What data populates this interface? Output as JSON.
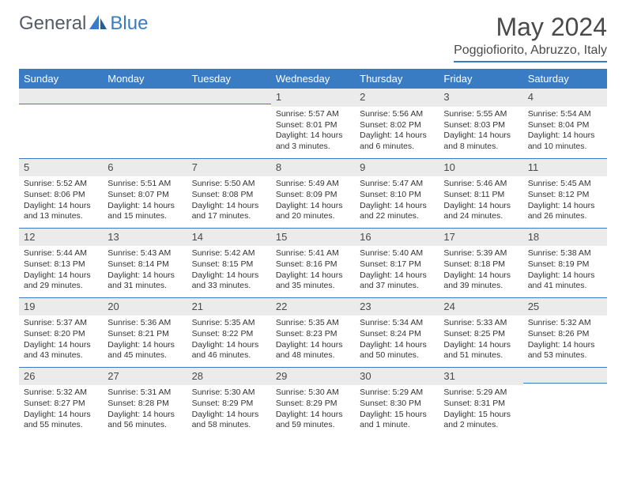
{
  "brand": {
    "name1": "General",
    "name2": "Blue"
  },
  "colors": {
    "accent": "#3a7cc4",
    "header_row_bg": "#3a7cc4",
    "header_row_fg": "#ffffff",
    "daynum_bg": "#ebebeb",
    "text": "#333333",
    "title": "#4a4a4a"
  },
  "typography": {
    "base_font": "Arial",
    "title_size_pt": 24,
    "body_size_pt": 8
  },
  "title": "May 2024",
  "location": "Poggiofiorito, Abruzzo, Italy",
  "weekdays": [
    "Sunday",
    "Monday",
    "Tuesday",
    "Wednesday",
    "Thursday",
    "Friday",
    "Saturday"
  ],
  "layout": {
    "first_day_column": 3,
    "columns": 7,
    "rows": 5
  },
  "days": [
    {
      "n": "1",
      "sr": "Sunrise: 5:57 AM",
      "ss": "Sunset: 8:01 PM",
      "d1": "Daylight: 14 hours",
      "d2": "and 3 minutes."
    },
    {
      "n": "2",
      "sr": "Sunrise: 5:56 AM",
      "ss": "Sunset: 8:02 PM",
      "d1": "Daylight: 14 hours",
      "d2": "and 6 minutes."
    },
    {
      "n": "3",
      "sr": "Sunrise: 5:55 AM",
      "ss": "Sunset: 8:03 PM",
      "d1": "Daylight: 14 hours",
      "d2": "and 8 minutes."
    },
    {
      "n": "4",
      "sr": "Sunrise: 5:54 AM",
      "ss": "Sunset: 8:04 PM",
      "d1": "Daylight: 14 hours",
      "d2": "and 10 minutes."
    },
    {
      "n": "5",
      "sr": "Sunrise: 5:52 AM",
      "ss": "Sunset: 8:06 PM",
      "d1": "Daylight: 14 hours",
      "d2": "and 13 minutes."
    },
    {
      "n": "6",
      "sr": "Sunrise: 5:51 AM",
      "ss": "Sunset: 8:07 PM",
      "d1": "Daylight: 14 hours",
      "d2": "and 15 minutes."
    },
    {
      "n": "7",
      "sr": "Sunrise: 5:50 AM",
      "ss": "Sunset: 8:08 PM",
      "d1": "Daylight: 14 hours",
      "d2": "and 17 minutes."
    },
    {
      "n": "8",
      "sr": "Sunrise: 5:49 AM",
      "ss": "Sunset: 8:09 PM",
      "d1": "Daylight: 14 hours",
      "d2": "and 20 minutes."
    },
    {
      "n": "9",
      "sr": "Sunrise: 5:47 AM",
      "ss": "Sunset: 8:10 PM",
      "d1": "Daylight: 14 hours",
      "d2": "and 22 minutes."
    },
    {
      "n": "10",
      "sr": "Sunrise: 5:46 AM",
      "ss": "Sunset: 8:11 PM",
      "d1": "Daylight: 14 hours",
      "d2": "and 24 minutes."
    },
    {
      "n": "11",
      "sr": "Sunrise: 5:45 AM",
      "ss": "Sunset: 8:12 PM",
      "d1": "Daylight: 14 hours",
      "d2": "and 26 minutes."
    },
    {
      "n": "12",
      "sr": "Sunrise: 5:44 AM",
      "ss": "Sunset: 8:13 PM",
      "d1": "Daylight: 14 hours",
      "d2": "and 29 minutes."
    },
    {
      "n": "13",
      "sr": "Sunrise: 5:43 AM",
      "ss": "Sunset: 8:14 PM",
      "d1": "Daylight: 14 hours",
      "d2": "and 31 minutes."
    },
    {
      "n": "14",
      "sr": "Sunrise: 5:42 AM",
      "ss": "Sunset: 8:15 PM",
      "d1": "Daylight: 14 hours",
      "d2": "and 33 minutes."
    },
    {
      "n": "15",
      "sr": "Sunrise: 5:41 AM",
      "ss": "Sunset: 8:16 PM",
      "d1": "Daylight: 14 hours",
      "d2": "and 35 minutes."
    },
    {
      "n": "16",
      "sr": "Sunrise: 5:40 AM",
      "ss": "Sunset: 8:17 PM",
      "d1": "Daylight: 14 hours",
      "d2": "and 37 minutes."
    },
    {
      "n": "17",
      "sr": "Sunrise: 5:39 AM",
      "ss": "Sunset: 8:18 PM",
      "d1": "Daylight: 14 hours",
      "d2": "and 39 minutes."
    },
    {
      "n": "18",
      "sr": "Sunrise: 5:38 AM",
      "ss": "Sunset: 8:19 PM",
      "d1": "Daylight: 14 hours",
      "d2": "and 41 minutes."
    },
    {
      "n": "19",
      "sr": "Sunrise: 5:37 AM",
      "ss": "Sunset: 8:20 PM",
      "d1": "Daylight: 14 hours",
      "d2": "and 43 minutes."
    },
    {
      "n": "20",
      "sr": "Sunrise: 5:36 AM",
      "ss": "Sunset: 8:21 PM",
      "d1": "Daylight: 14 hours",
      "d2": "and 45 minutes."
    },
    {
      "n": "21",
      "sr": "Sunrise: 5:35 AM",
      "ss": "Sunset: 8:22 PM",
      "d1": "Daylight: 14 hours",
      "d2": "and 46 minutes."
    },
    {
      "n": "22",
      "sr": "Sunrise: 5:35 AM",
      "ss": "Sunset: 8:23 PM",
      "d1": "Daylight: 14 hours",
      "d2": "and 48 minutes."
    },
    {
      "n": "23",
      "sr": "Sunrise: 5:34 AM",
      "ss": "Sunset: 8:24 PM",
      "d1": "Daylight: 14 hours",
      "d2": "and 50 minutes."
    },
    {
      "n": "24",
      "sr": "Sunrise: 5:33 AM",
      "ss": "Sunset: 8:25 PM",
      "d1": "Daylight: 14 hours",
      "d2": "and 51 minutes."
    },
    {
      "n": "25",
      "sr": "Sunrise: 5:32 AM",
      "ss": "Sunset: 8:26 PM",
      "d1": "Daylight: 14 hours",
      "d2": "and 53 minutes."
    },
    {
      "n": "26",
      "sr": "Sunrise: 5:32 AM",
      "ss": "Sunset: 8:27 PM",
      "d1": "Daylight: 14 hours",
      "d2": "and 55 minutes."
    },
    {
      "n": "27",
      "sr": "Sunrise: 5:31 AM",
      "ss": "Sunset: 8:28 PM",
      "d1": "Daylight: 14 hours",
      "d2": "and 56 minutes."
    },
    {
      "n": "28",
      "sr": "Sunrise: 5:30 AM",
      "ss": "Sunset: 8:29 PM",
      "d1": "Daylight: 14 hours",
      "d2": "and 58 minutes."
    },
    {
      "n": "29",
      "sr": "Sunrise: 5:30 AM",
      "ss": "Sunset: 8:29 PM",
      "d1": "Daylight: 14 hours",
      "d2": "and 59 minutes."
    },
    {
      "n": "30",
      "sr": "Sunrise: 5:29 AM",
      "ss": "Sunset: 8:30 PM",
      "d1": "Daylight: 15 hours",
      "d2": "and 1 minute."
    },
    {
      "n": "31",
      "sr": "Sunrise: 5:29 AM",
      "ss": "Sunset: 8:31 PM",
      "d1": "Daylight: 15 hours",
      "d2": "and 2 minutes."
    }
  ]
}
